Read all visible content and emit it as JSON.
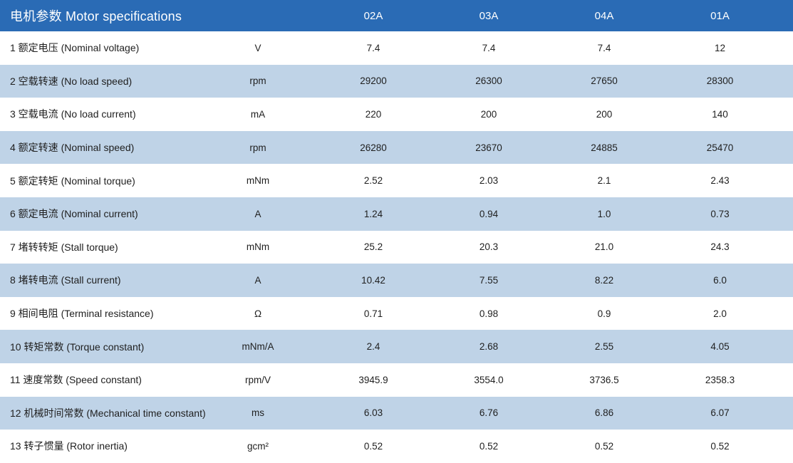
{
  "colors": {
    "header_bg": "#2a6bb5",
    "stripe_bg": "#bfd3e7",
    "header_text": "#ffffff",
    "body_text": "#1f1f1f"
  },
  "table": {
    "title": "电机参数 Motor specifications",
    "columns": [
      "02A",
      "03A",
      "04A",
      "01A"
    ],
    "rows": [
      {
        "label": "1 额定电压 (Nominal voltage)",
        "unit": "V",
        "values": [
          "7.4",
          "7.4",
          "7.4",
          "12"
        ]
      },
      {
        "label": "2 空载转速 (No load speed)",
        "unit": "rpm",
        "values": [
          "29200",
          "26300",
          "27650",
          "28300"
        ]
      },
      {
        "label": "3 空载电流 (No load current)",
        "unit": "mA",
        "values": [
          "220",
          "200",
          "200",
          "140"
        ]
      },
      {
        "label": "4 额定转速 (Nominal speed)",
        "unit": "rpm",
        "values": [
          "26280",
          "23670",
          "24885",
          "25470"
        ]
      },
      {
        "label": "5 额定转矩 (Nominal torque)",
        "unit": "mNm",
        "values": [
          "2.52",
          "2.03",
          "2.1",
          "2.43"
        ]
      },
      {
        "label": "6 额定电流 (Nominal current)",
        "unit": "A",
        "values": [
          "1.24",
          "0.94",
          "1.0",
          "0.73"
        ]
      },
      {
        "label": "7 堵转转矩 (Stall torque)",
        "unit": "mNm",
        "values": [
          "25.2",
          "20.3",
          "21.0",
          "24.3"
        ]
      },
      {
        "label": "8 堵转电流 (Stall current)",
        "unit": "A",
        "values": [
          "10.42",
          "7.55",
          "8.22",
          "6.0"
        ]
      },
      {
        "label": "9 相间电阻 (Terminal resistance)",
        "unit": "Ω",
        "values": [
          "0.71",
          "0.98",
          "0.9",
          "2.0"
        ]
      },
      {
        "label": "10 转矩常数 (Torque constant)",
        "unit": "mNm/A",
        "values": [
          "2.4",
          "2.68",
          "2.55",
          "4.05"
        ]
      },
      {
        "label": "11 速度常数 (Speed constant)",
        "unit": "rpm/V",
        "values": [
          "3945.9",
          "3554.0",
          "3736.5",
          "2358.3"
        ]
      },
      {
        "label": "12 机械时间常数 (Mechanical time constant)",
        "unit": "ms",
        "values": [
          "6.03",
          "6.76",
          "6.86",
          "6.07"
        ]
      },
      {
        "label": "13 转子惯量 (Rotor inertia)",
        "unit": "gcm²",
        "values": [
          "0.52",
          "0.52",
          "0.52",
          "0.52"
        ]
      }
    ]
  }
}
